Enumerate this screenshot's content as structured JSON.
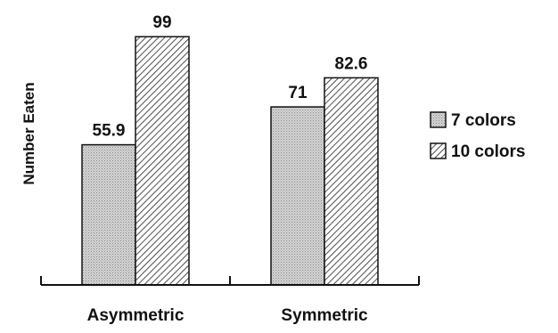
{
  "chart_data": {
    "type": "bar",
    "title": "",
    "xlabel": "",
    "ylabel": "Number Eaten",
    "categories": [
      "Asymmetric",
      "Symmetric"
    ],
    "series": [
      {
        "name": "7 colors",
        "values": [
          55.9,
          71
        ],
        "pattern": "dots",
        "color": "#cfcfcf"
      },
      {
        "name": "10 colors",
        "values": [
          99,
          82.6
        ],
        "pattern": "diagonal-hatch",
        "color": "#ffffff"
      }
    ],
    "data_labels": [
      [
        "55.9",
        "71"
      ],
      [
        "99",
        "82.6"
      ]
    ],
    "ylim": [
      0,
      110
    ],
    "grid": false,
    "legend_position": "right"
  }
}
